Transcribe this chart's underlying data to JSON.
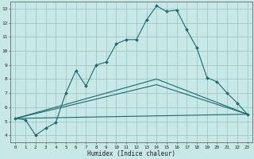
{
  "xlabel": "Humidex (Indice chaleur)",
  "bg_color": "#c8e8e8",
  "grid_color": "#a0c8c8",
  "line_color": "#1a6b6b",
  "xlim": [
    -0.5,
    23.5
  ],
  "ylim": [
    3.5,
    13.5
  ],
  "xticks": [
    0,
    1,
    2,
    3,
    4,
    5,
    6,
    7,
    8,
    9,
    10,
    11,
    12,
    13,
    14,
    15,
    16,
    17,
    18,
    19,
    20,
    21,
    22,
    23
  ],
  "yticks": [
    4,
    5,
    6,
    7,
    8,
    9,
    10,
    11,
    12,
    13
  ],
  "line1_x": [
    0,
    1,
    2,
    3,
    4,
    5,
    6,
    7,
    8,
    9,
    10,
    11,
    12,
    13,
    14,
    15,
    16,
    17,
    18,
    19,
    20,
    21,
    22,
    23
  ],
  "line1_y": [
    5.2,
    5.1,
    4.0,
    4.5,
    4.9,
    7.0,
    8.6,
    7.5,
    9.0,
    9.2,
    10.5,
    10.8,
    10.8,
    12.2,
    13.2,
    12.8,
    12.9,
    11.5,
    10.2,
    8.1,
    7.8,
    7.0,
    6.3,
    5.5
  ],
  "line2_x": [
    0,
    23
  ],
  "line2_y": [
    5.2,
    5.5
  ],
  "line3_x": [
    0,
    14,
    23
  ],
  "line3_y": [
    5.2,
    7.6,
    5.5
  ],
  "line4_x": [
    0,
    14,
    23
  ],
  "line4_y": [
    5.2,
    8.0,
    5.5
  ]
}
